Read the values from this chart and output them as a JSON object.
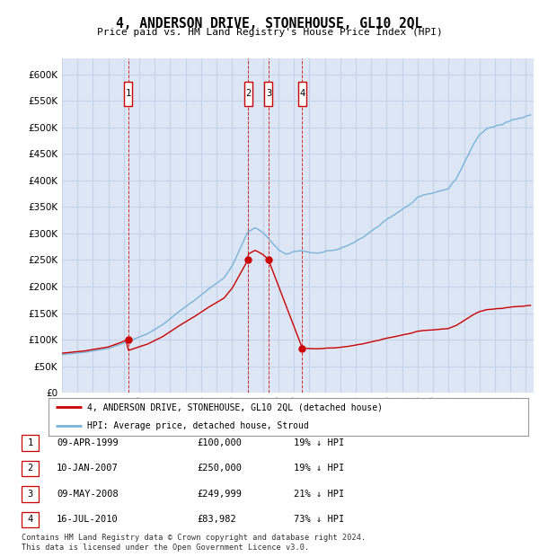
{
  "title": "4, ANDERSON DRIVE, STONEHOUSE, GL10 2QL",
  "subtitle": "Price paid vs. HM Land Registry's House Price Index (HPI)",
  "yticks": [
    0,
    50000,
    100000,
    150000,
    200000,
    250000,
    300000,
    350000,
    400000,
    450000,
    500000,
    550000,
    600000
  ],
  "xlim_start": 1995.0,
  "xlim_end": 2025.5,
  "ylim": [
    0,
    630000
  ],
  "legend_line1": "4, ANDERSON DRIVE, STONEHOUSE, GL10 2QL (detached house)",
  "legend_line2": "HPI: Average price, detached house, Stroud",
  "transactions": [
    {
      "num": 1,
      "date": "09-APR-1999",
      "price": 100000,
      "hpi_pct": "19% ↓ HPI",
      "year": 1999.27
    },
    {
      "num": 2,
      "date": "10-JAN-2007",
      "price": 250000,
      "hpi_pct": "19% ↓ HPI",
      "year": 2007.03
    },
    {
      "num": 3,
      "date": "09-MAY-2008",
      "price": 249999,
      "hpi_pct": "21% ↓ HPI",
      "year": 2008.36
    },
    {
      "num": 4,
      "date": "16-JUL-2010",
      "price": 83982,
      "hpi_pct": "73% ↓ HPI",
      "year": 2010.54
    }
  ],
  "footnote": "Contains HM Land Registry data © Crown copyright and database right 2024.\nThis data is licensed under the Open Government Licence v3.0.",
  "plot_bg_color": "#dce6f5",
  "grid_color": "#c5d3e8",
  "hpi_color": "#7ab3d8",
  "sale_color": "#cc0000",
  "marker_box_color": "#cc0000"
}
